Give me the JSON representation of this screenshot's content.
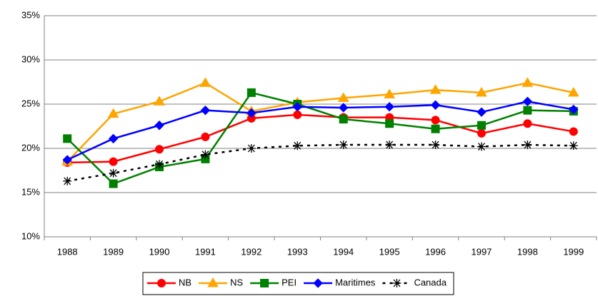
{
  "chart_data": {
    "type": "line",
    "categories": [
      "1988",
      "1989",
      "1990",
      "1991",
      "1992",
      "1993",
      "1994",
      "1995",
      "1996",
      "1997",
      "1998",
      "1999"
    ],
    "series": [
      {
        "name": "NB",
        "color": "#ff0000",
        "marker": "circle",
        "dash": false,
        "values": [
          18.4,
          18.5,
          19.9,
          21.3,
          23.4,
          23.8,
          23.5,
          23.5,
          23.2,
          21.7,
          22.8,
          21.9
        ]
      },
      {
        "name": "NS",
        "color": "#ffa500",
        "marker": "triangle",
        "dash": false,
        "values": [
          18.5,
          23.9,
          25.3,
          27.4,
          24.2,
          25.2,
          25.7,
          26.1,
          26.6,
          26.3,
          27.4,
          26.3
        ]
      },
      {
        "name": "PEI",
        "color": "#008000",
        "marker": "square",
        "dash": false,
        "values": [
          21.1,
          16.0,
          17.9,
          18.8,
          26.3,
          25.0,
          23.3,
          22.8,
          22.2,
          22.6,
          24.3,
          24.2
        ]
      },
      {
        "name": "Maritimes",
        "color": "#0000ff",
        "marker": "diamond",
        "dash": false,
        "values": [
          18.7,
          21.1,
          22.6,
          24.3,
          24.0,
          24.7,
          24.6,
          24.7,
          24.9,
          24.1,
          25.3,
          24.4
        ]
      },
      {
        "name": "Canada",
        "color": "#000000",
        "marker": "asterisk",
        "dash": true,
        "values": [
          16.3,
          17.2,
          18.2,
          19.3,
          20.0,
          20.3,
          20.4,
          20.4,
          20.4,
          20.2,
          20.4,
          20.3
        ]
      }
    ],
    "ylim": [
      10,
      35
    ],
    "yticks": [
      {
        "value": 10,
        "label": "10%"
      },
      {
        "value": 15,
        "label": "15%"
      },
      {
        "value": 20,
        "label": "20%"
      },
      {
        "value": 25,
        "label": "25%"
      },
      {
        "value": 30,
        "label": "30%"
      },
      {
        "value": 35,
        "label": "35%"
      }
    ],
    "grid": true,
    "legend": "bottom"
  }
}
